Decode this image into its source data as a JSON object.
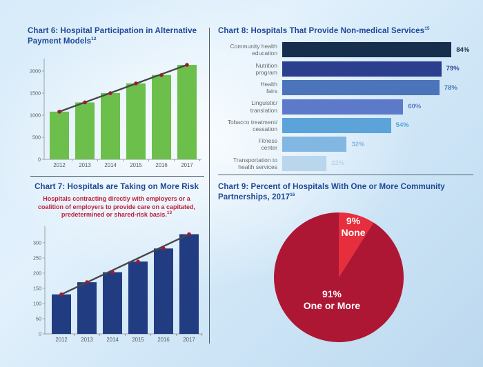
{
  "page": {
    "colors": {
      "background_center": "#eef7fd",
      "background_edge": "#bcd8ef",
      "title_navy": "#1e4896",
      "subtitle_red": "#c1203a",
      "divider": "#4e5d6e",
      "axis": "#9aa0a6",
      "tick_text": "#55595c",
      "trend_line": "#45484b",
      "trend_dot": "#9c1b32"
    }
  },
  "chart_data": [
    {
      "id": "chart-6",
      "type": "bar",
      "title": "Chart 6: Hospital Participation in Alternative Payment Models",
      "footnote_superscript": "12",
      "categories": [
        "2012",
        "2013",
        "2014",
        "2015",
        "2016",
        "2017"
      ],
      "values": [
        1080,
        1290,
        1500,
        1720,
        1910,
        2140
      ],
      "ylim": [
        0,
        2250
      ],
      "yticks": [
        0,
        500,
        1000,
        1500,
        2000
      ],
      "xlabel": "",
      "ylabel": "",
      "grid": false,
      "bar_color": "#6cbf4b",
      "trend_line": true,
      "trend_color": "#45484b",
      "dot_color": "#9c1b32"
    },
    {
      "id": "chart-8",
      "type": "bar-horizontal",
      "title": "Chart 8: Hospitals That Provide Non-medical Services",
      "footnote_superscript": "15",
      "categories": [
        "Community health\neducation",
        "Nutrition\nprogram",
        "Health\nfairs",
        "Linguistic/\ntranslation",
        "Tobacco treatment/\ncessation",
        "Fitness\ncenter",
        "Transportation to\nhealth services"
      ],
      "values": [
        84,
        79,
        78,
        60,
        54,
        32,
        22
      ],
      "value_suffix": "%",
      "xlim": [
        0,
        100
      ],
      "grid": false,
      "bar_colors": [
        "#152f4d",
        "#2b3f8e",
        "#4c74ba",
        "#5d79c9",
        "#5ba3d9",
        "#82b7e2",
        "#b9d6ec"
      ],
      "label_color": "#66696c"
    },
    {
      "id": "chart-7",
      "type": "bar",
      "title": "Chart 7: Hospitals are Taking on More Risk",
      "subtitle": "Hospitals contracting directly with employers or a coalition of employers to provide care on a capitated, predetermined or shared-risk basis.",
      "subtitle_footnote_superscript": "13",
      "categories": [
        "2012",
        "2013",
        "2014",
        "2015",
        "2016",
        "2017"
      ],
      "values": [
        130,
        170,
        203,
        238,
        281,
        328
      ],
      "ylim": [
        0,
        345
      ],
      "yticks": [
        0,
        50,
        100,
        150,
        200,
        250,
        300
      ],
      "xlabel": "",
      "ylabel": "",
      "grid": false,
      "bar_color": "#223c82",
      "trend_line": true,
      "trend_color": "#45484b",
      "dot_color": "#9c1b32"
    },
    {
      "id": "chart-9",
      "type": "pie",
      "title": "Chart 9: Percent of Hospitals With One or More Community Partnerships, 2017",
      "footnote_superscript": "16",
      "legend_position": "inside",
      "slices": [
        {
          "label": "None",
          "value": 9,
          "pct_label": "9%",
          "color": "#e62e3c"
        },
        {
          "label": "One or More",
          "value": 91,
          "pct_label": "91%",
          "color": "#ae1733"
        }
      ]
    }
  ]
}
